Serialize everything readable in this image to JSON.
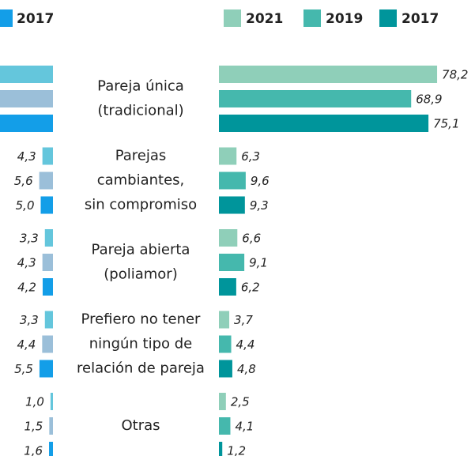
{
  "chart_data": {
    "type": "bar",
    "categories": [
      [
        "Pareja única",
        "(tradicional)"
      ],
      [
        "Parejas",
        "cambiantes,",
        "sin compromiso"
      ],
      [
        "Pareja abierta",
        "(poliamor)"
      ],
      [
        "Prefiero no tener",
        "ningún tipo de",
        "relación de pareja"
      ],
      [
        "Otras"
      ]
    ],
    "left_series": [
      {
        "color": "#64c6dc",
        "values": [
          75,
          4.3,
          3.3,
          3.3,
          1.0
        ],
        "value_labels": [
          null,
          "4,3",
          "3,3",
          "3,3",
          "1,0"
        ]
      },
      {
        "color": "#9bbfd9",
        "values": [
          72,
          5.6,
          4.3,
          4.4,
          1.5
        ],
        "value_labels": [
          null,
          "5,6",
          "4,3",
          "4,4",
          "1,5"
        ]
      },
      {
        "name": "2017",
        "color": "#139ee8",
        "values": [
          74,
          5.0,
          4.2,
          5.5,
          1.6
        ],
        "value_labels": [
          null,
          "5,0",
          "4,2",
          "5,5",
          "1,6"
        ]
      }
    ],
    "series": [
      {
        "name": "2021",
        "color": "#8fcfb9",
        "values": [
          78.2,
          6.3,
          6.6,
          3.7,
          2.5
        ],
        "value_labels": [
          "78,2",
          "6,3",
          "6,6",
          "3,7",
          "2,5"
        ]
      },
      {
        "name": "2019",
        "color": "#45b8ad",
        "values": [
          68.9,
          9.6,
          9.1,
          4.4,
          4.1
        ],
        "value_labels": [
          "68,9",
          "9,6",
          "9,1",
          "4,4",
          "4,1"
        ]
      },
      {
        "name": "2017",
        "color": "#00959b",
        "values": [
          75.1,
          9.3,
          6.2,
          4.8,
          1.2
        ],
        "value_labels": [
          "75,1",
          "9,3",
          "6,2",
          "4,8",
          "1,2"
        ]
      }
    ]
  }
}
